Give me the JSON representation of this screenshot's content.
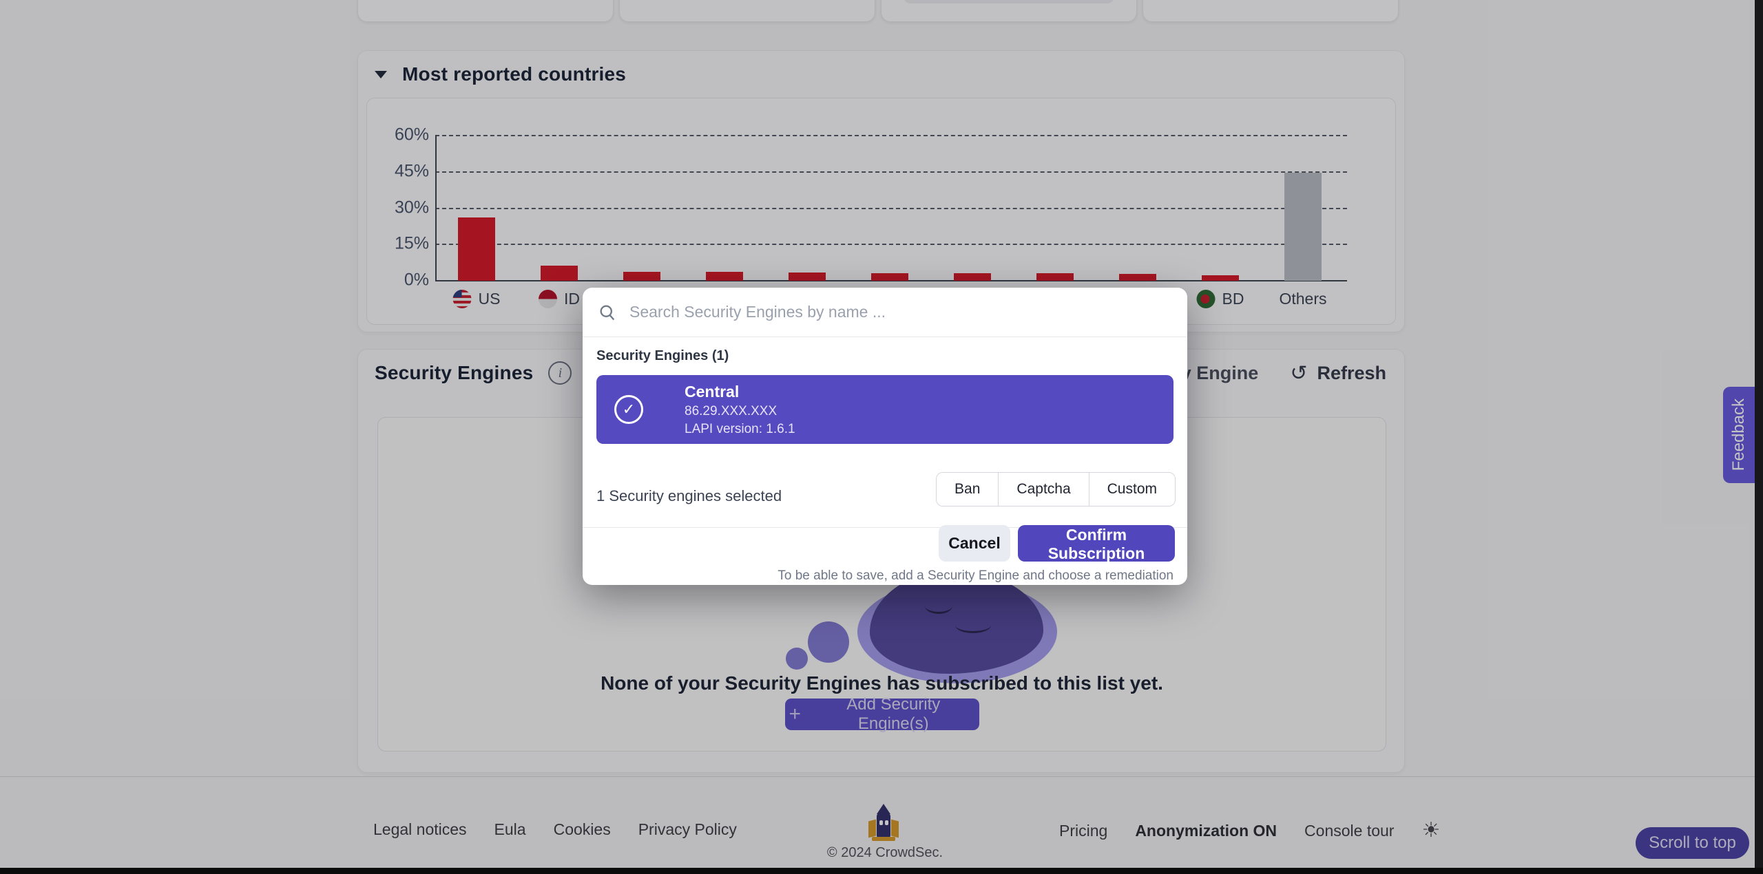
{
  "top_cards": {
    "count": 4,
    "badge_color": "#ef8d94"
  },
  "countries_section": {
    "title": "Most reported countries"
  },
  "chart_data": {
    "type": "bar",
    "title": "Most reported countries",
    "categories": [
      "US",
      "ID",
      "",
      "",
      "",
      "",
      "",
      "",
      "",
      "BD",
      "Others"
    ],
    "values": [
      26,
      6.2,
      3.7,
      3.7,
      3.3,
      3.2,
      3.1,
      3.0,
      2.8,
      2.2,
      44.5
    ],
    "flags": [
      "us",
      "id",
      null,
      null,
      null,
      null,
      null,
      null,
      null,
      "bd",
      null
    ],
    "bar_colors": [
      "#d61a28",
      "#d61a28",
      "#d61a28",
      "#d61a28",
      "#d61a28",
      "#d61a28",
      "#d61a28",
      "#d61a28",
      "#d61a28",
      "#d61a28",
      "#b9bdc4"
    ],
    "ylabel": "",
    "xlabel": "",
    "yticks": [
      "60%",
      "45%",
      "30%",
      "15%",
      "0%"
    ],
    "ylim": [
      0,
      60
    ],
    "grid": "horizontal-dashed",
    "legend": "none",
    "note": "category labels for bars 3-9 are hidden behind the modal dialog"
  },
  "engines_section": {
    "title": "Security Engines",
    "partial_add_label": "Security Engine",
    "refresh_label": "Refresh",
    "empty_title": "None of your Security Engines has subscribed to this list yet.",
    "add_button_label": "Add Security Engine(s)"
  },
  "modal": {
    "search_placeholder": "Search Security Engines by name ...",
    "list_label": "Security Engines (1)",
    "engine": {
      "name": "Central",
      "ip": "86.29.XXX.XXX",
      "lapi": "LAPI version: 1.6.1"
    },
    "selected_text": "1 Security engines selected",
    "remediations": [
      {
        "label": "Ban"
      },
      {
        "label": "Captcha"
      },
      {
        "label": "Custom"
      }
    ],
    "cancel_label": "Cancel",
    "confirm_label": "Confirm Subscription",
    "footnote": "To be able to save, add a Security Engine and choose a remediation",
    "accent_color": "#564ac0"
  },
  "footer": {
    "links_left": [
      {
        "label": "Legal notices"
      },
      {
        "label": "Eula"
      },
      {
        "label": "Cookies"
      },
      {
        "label": "Privacy Policy"
      }
    ],
    "copyright": "© 2024 CrowdSec.",
    "links_right": [
      {
        "label": "Pricing"
      },
      {
        "label": "Anonymization ON"
      },
      {
        "label": "Console tour"
      }
    ],
    "scroll_top_label": "Scroll to top"
  },
  "feedback": {
    "label": "Feedback"
  }
}
